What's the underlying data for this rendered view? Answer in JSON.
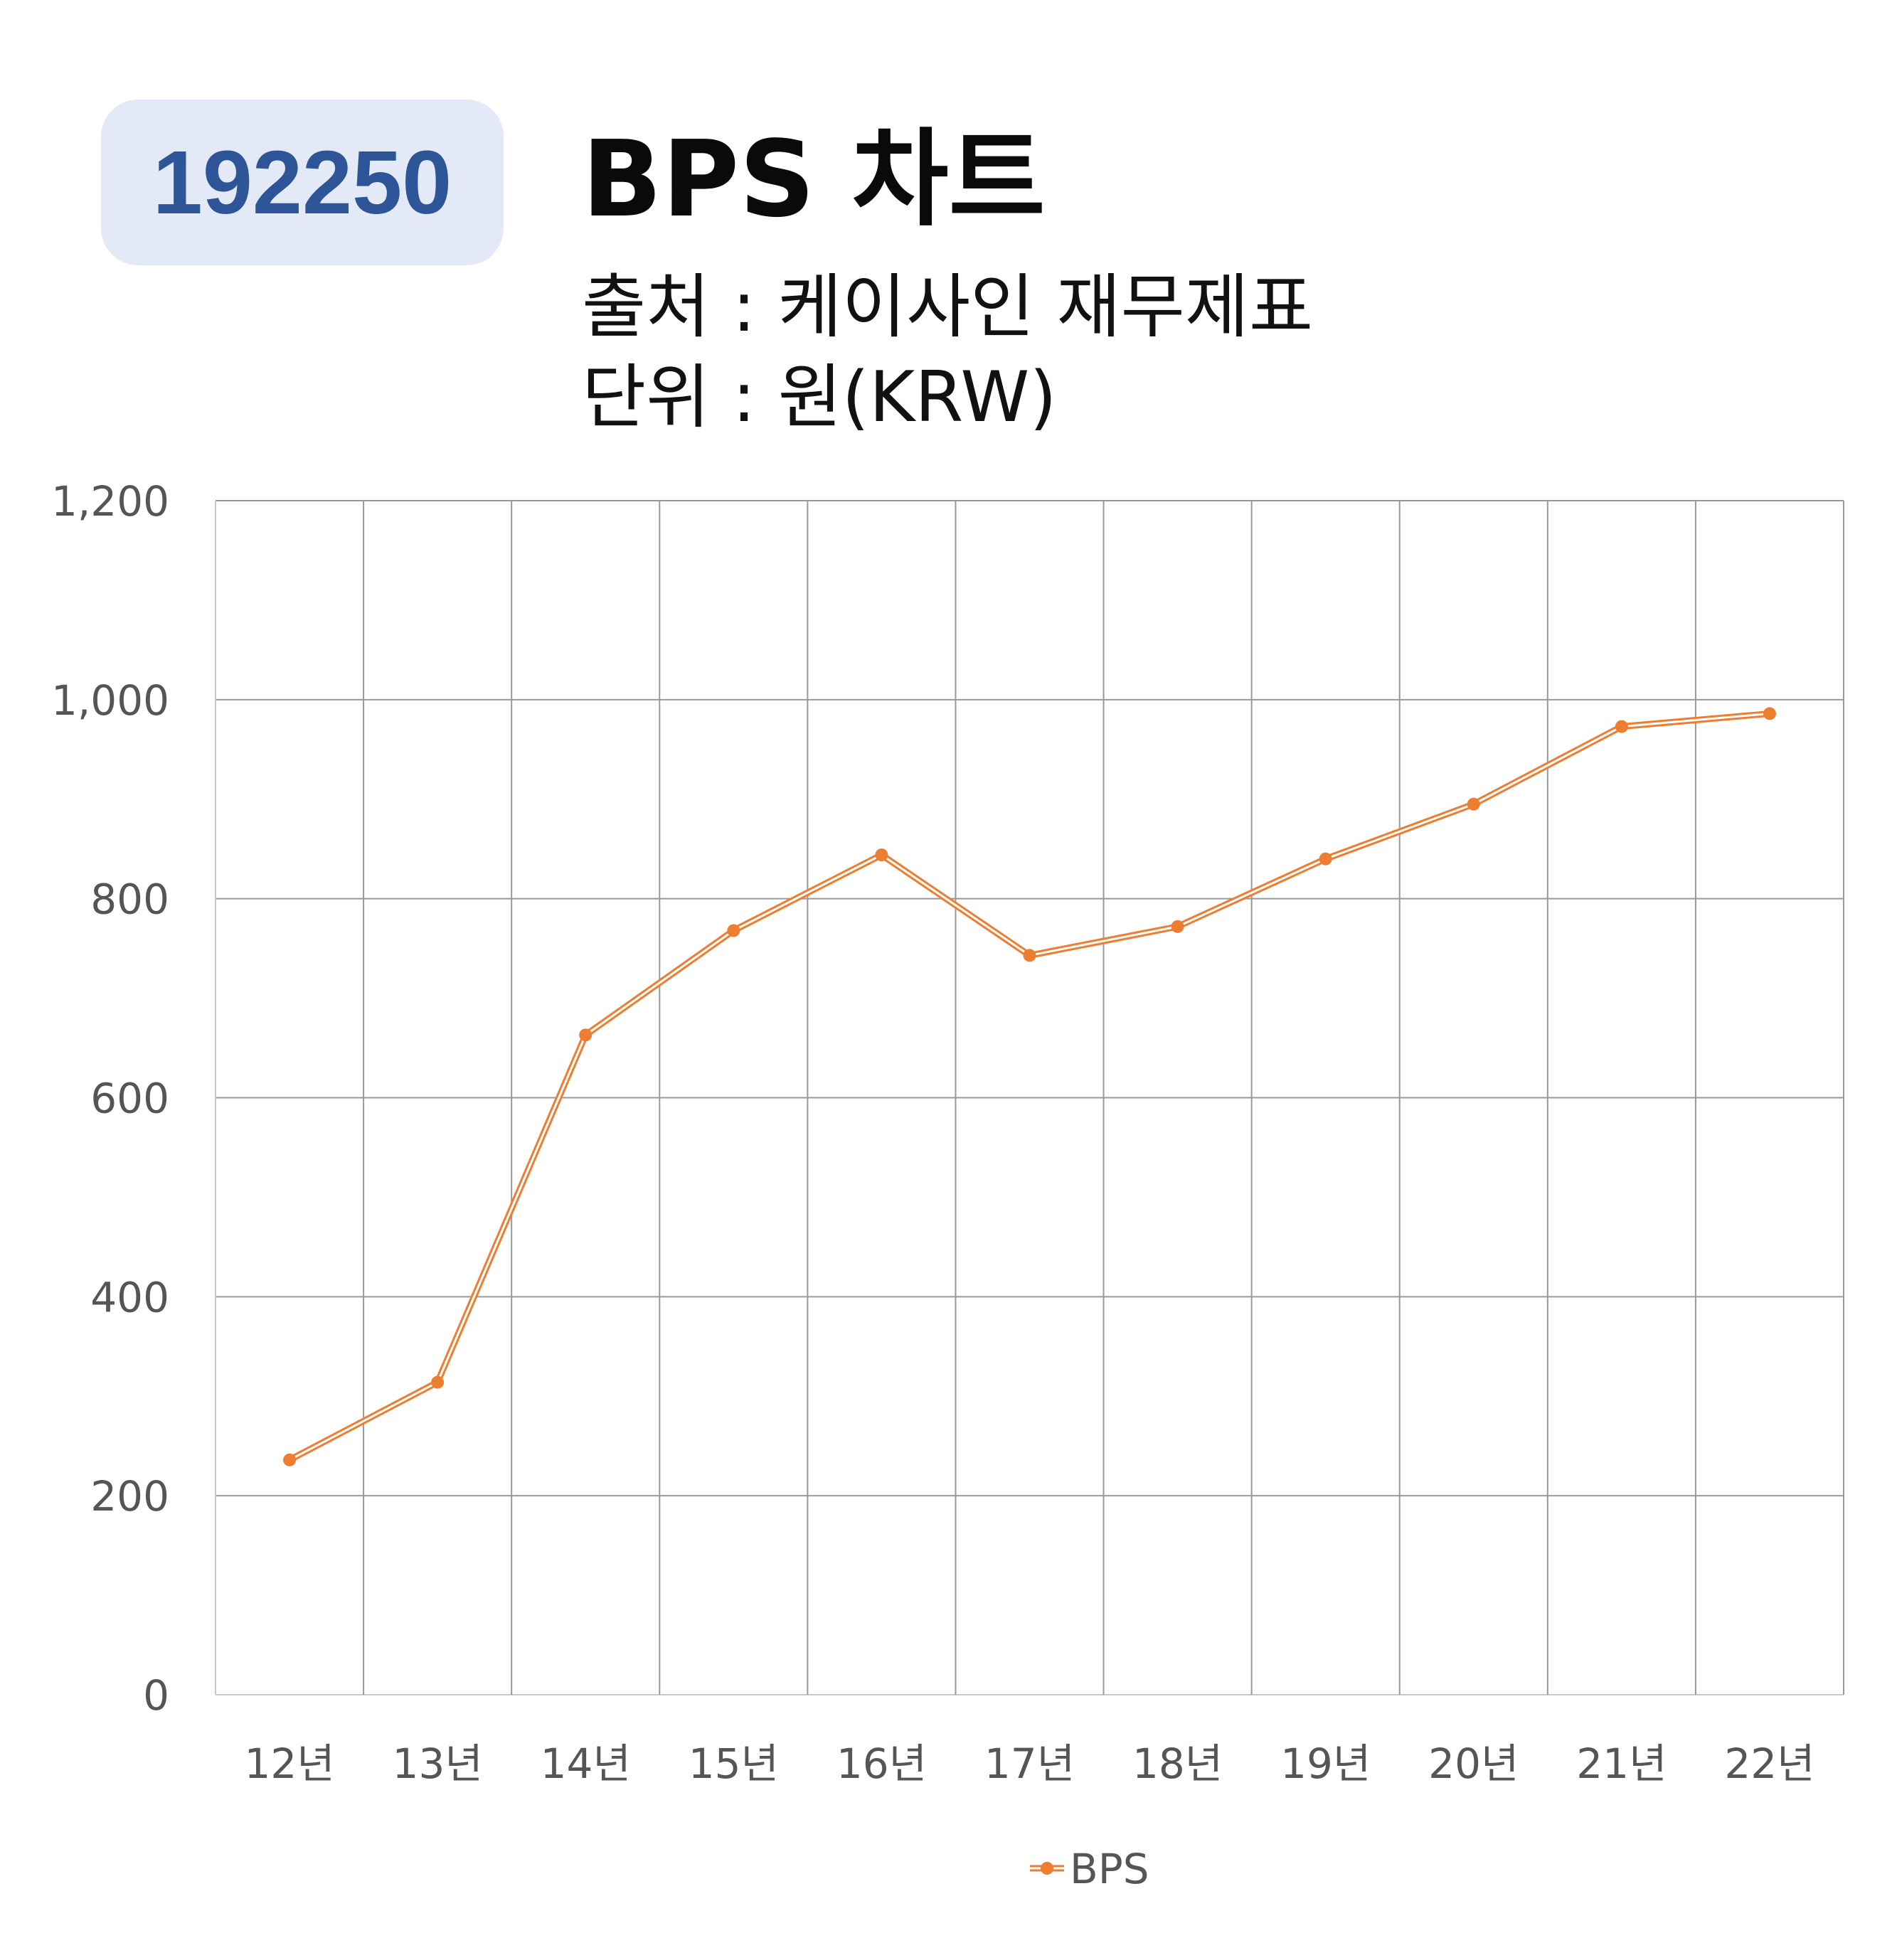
{
  "badge": {
    "code": "192250"
  },
  "header": {
    "title": "BPS 차트",
    "source": "출처 : 케이사인 재무제표",
    "unit": "단위 : 원(KRW)"
  },
  "colors": {
    "line": "#ed7d31",
    "badge_bg": "#e3e9f6",
    "badge_text": "#2e5597",
    "grid": "#999999"
  },
  "chart_data": {
    "type": "line",
    "categories": [
      "12년",
      "13년",
      "14년",
      "15년",
      "16년",
      "17년",
      "18년",
      "19년",
      "20년",
      "21년",
      "22년"
    ],
    "series": [
      {
        "name": "BPS",
        "values": [
          236,
          314,
          663,
          768,
          844,
          743,
          772,
          840,
          895,
          973,
          986
        ]
      }
    ],
    "ylim": [
      0,
      1200
    ],
    "yticks": [
      0,
      200,
      400,
      600,
      800,
      1000,
      1200
    ],
    "ytick_labels": [
      "0",
      "200",
      "400",
      "600",
      "800",
      "1,000",
      "1,200"
    ],
    "grid": true,
    "legend_position": "bottom"
  }
}
